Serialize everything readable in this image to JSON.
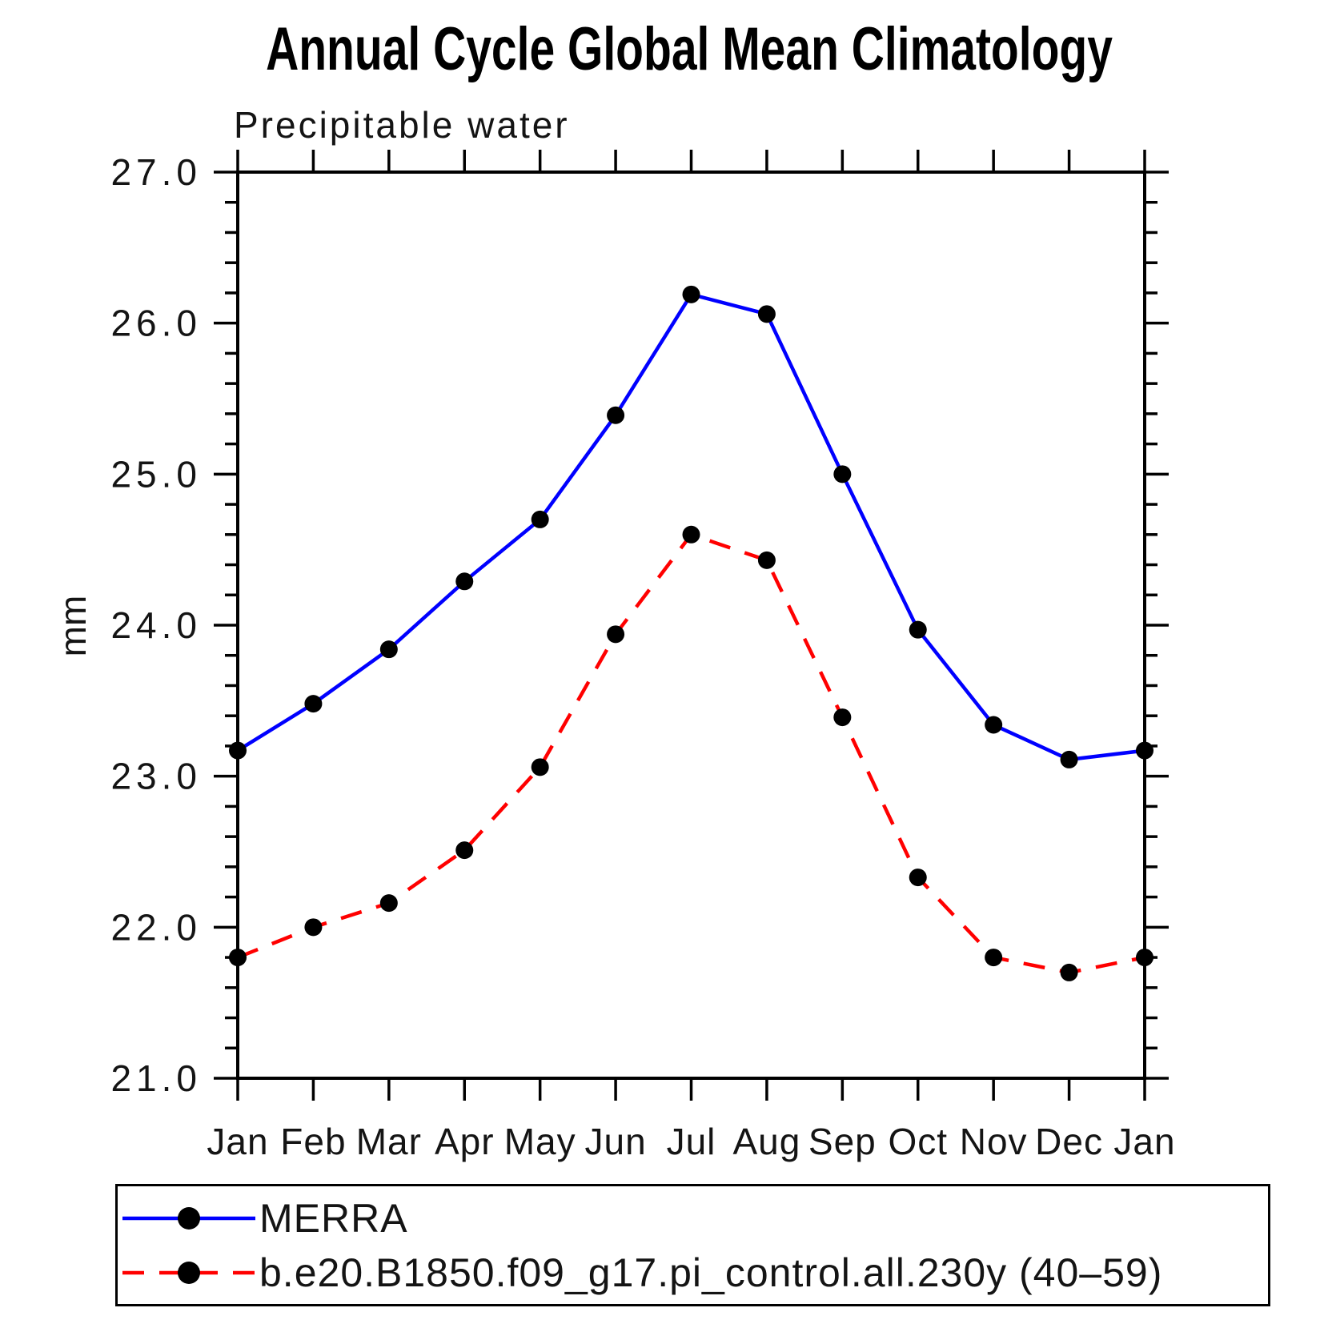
{
  "figure": {
    "title": "Annual Cycle Global Mean Climatology",
    "subtitle": "Precipitable water",
    "y_axis_label": "mm"
  },
  "chart_data": {
    "type": "line",
    "title": "Annual Cycle Global Mean Climatology",
    "subtitle": "Precipitable water",
    "xlabel": "",
    "ylabel": "mm",
    "categories": [
      "Jan",
      "Feb",
      "Mar",
      "Apr",
      "May",
      "Jun",
      "Jul",
      "Aug",
      "Sep",
      "Oct",
      "Nov",
      "Dec",
      "Jan"
    ],
    "ylim": [
      21.0,
      27.0
    ],
    "ytick_interval": 1.0,
    "ytick_labels": [
      "21.0",
      "22.0",
      "23.0",
      "24.0",
      "25.0",
      "26.0",
      "27.0"
    ],
    "minor_tick_interval": 0.2,
    "grid": false,
    "legend_position": "bottom-left-box",
    "axis_color": "#000000",
    "series": [
      {
        "name": "MERRA",
        "line_color": "#0000ff",
        "line_style": "solid",
        "marker": "filled-circle",
        "marker_color": "#000000",
        "values": [
          23.17,
          23.48,
          23.84,
          24.29,
          24.7,
          25.39,
          26.19,
          26.06,
          25.0,
          23.97,
          23.34,
          23.11,
          23.17
        ]
      },
      {
        "name": "b.e20.B1850.f09_g17.pi_control.all.230y (40–59)",
        "line_color": "#ff0000",
        "line_style": "dashed",
        "marker": "filled-circle",
        "marker_color": "#000000",
        "values": [
          21.8,
          22.0,
          22.16,
          22.51,
          23.06,
          23.94,
          24.6,
          24.43,
          23.39,
          22.33,
          21.8,
          21.7,
          21.8
        ]
      }
    ]
  }
}
